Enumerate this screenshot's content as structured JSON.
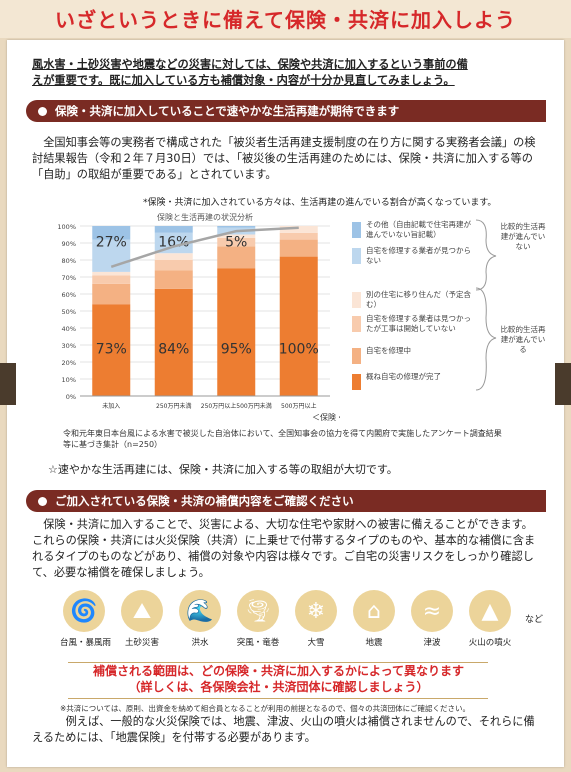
{
  "title": "いざというときに備えて保険・共済に加入しよう",
  "intro": {
    "part1": "風水害・土砂災害や地震などの災害に対しては、保険や共済に加入するという事前の備",
    "part2": "えが重要です。既に加入している方も補償対象・内容が十分か見直してみましょう。"
  },
  "section1": {
    "heading": "保険・共済に加入していることで速やかな生活再建が期待できます",
    "paragraph": "全国知事会等の実務者で構成された「被災者生活再建支援制度の在り方に関する実務者会議」の検討結果報告（令和２年７月30日）では、「被災後の生活再建のためには、保険・共済に加入する等の「自助」の取組が重要である」とされています。",
    "chart_note": "*保険・共済に加入されている方々は、生活再建の進んでいる割合が高くなっています。",
    "chart_title": "保険と生活再建の状況分析",
    "source": "令和元年東日本台風による水害で被災した自治体において、全国知事会の協力を得て内閣府で実施したアンケート調査結果等に基づき集計（n=250）",
    "conclusion": "☆速やかな生活再建には、保険・共済に加入する等の取組が大切です。"
  },
  "chart_data": {
    "type": "bar",
    "stacked": true,
    "title": "保険と生活再建の状況分析",
    "xlabel": "＜保険・共済の 受取額＞",
    "categories": [
      "未加入",
      "250万円未満",
      "250万円以上500万円未満",
      "500万円以上"
    ],
    "y_ticks": [
      "0%",
      "10%",
      "20%",
      "30%",
      "40%",
      "50%",
      "60%",
      "70%",
      "80%",
      "90%",
      "100%"
    ],
    "ylim": [
      0,
      100
    ],
    "series": [
      {
        "name": "概ね自宅の修理が完了",
        "color": "#ed7d31",
        "values": [
          54,
          63,
          75,
          82
        ]
      },
      {
        "name": "自宅を修理中",
        "color": "#f4b183",
        "values": [
          12,
          11,
          13,
          10
        ]
      },
      {
        "name": "自宅を修理する業者は見つかったが工事は開始していない",
        "color": "#f8cbad",
        "values": [
          5,
          6,
          5,
          4
        ]
      },
      {
        "name": "別の住宅に移り住んだ（予定含む）",
        "color": "#fbe5d6",
        "values": [
          2,
          4,
          2,
          4
        ]
      },
      {
        "name": "自宅を修理する業者が見つからない",
        "color": "#bdd7ee",
        "values": [
          19,
          12,
          4,
          0
        ]
      },
      {
        "name": "その他（自由記載で住宅再建が進んでいない旨記載）",
        "color": "#9dc3e6",
        "values": [
          8,
          4,
          1,
          0
        ]
      }
    ],
    "line": {
      "values": [
        76,
        88,
        97,
        99
      ],
      "color": "#a6a6a6"
    },
    "bar_labels": {
      "top": [
        "27%",
        "16%",
        "5%",
        ""
      ],
      "bottom": [
        "73%",
        "84%",
        "95%",
        "100%"
      ]
    },
    "brace_labels": [
      "比較的生活再建が進んでいない",
      "比較的生活再建が進んでいる"
    ],
    "legend_location": "right"
  },
  "section2": {
    "heading": "ご加入されている保険・共済の補償内容をご確認ください",
    "paragraph": "保険・共済に加入することで、災害による、大切な住宅や家財への被害に備えることができます。これらの保険・共済には火災保険（共済）に上乗せで付帯するタイプのものや、基本的な補償に含まれるタイプのものなどがあり、補償の対象や内容は様々です。ご自宅の災害リスクをしっかり確認して、必要な補償を確保しましょう。",
    "icons": [
      {
        "label": "台風・暴風雨",
        "icon": "typhoon-icon",
        "glyph": "🌀"
      },
      {
        "label": "土砂災害",
        "icon": "landslide-icon",
        "glyph": "⛰"
      },
      {
        "label": "洪水",
        "icon": "flood-icon",
        "glyph": "🌊"
      },
      {
        "label": "突風・竜巻",
        "icon": "tornado-icon",
        "glyph": "🌪"
      },
      {
        "label": "大雪",
        "icon": "snow-icon",
        "glyph": "❄"
      },
      {
        "label": "地震",
        "icon": "earthquake-icon",
        "glyph": "⌂"
      },
      {
        "label": "津波",
        "icon": "tsunami-icon",
        "glyph": "≈"
      },
      {
        "label": "火山の噴火",
        "icon": "volcano-icon",
        "glyph": "▲"
      }
    ],
    "etc": "など",
    "range_line1": "補償される範囲は、どの保険・共済に加入するかによって異なります",
    "range_line2": "（詳しくは、各保険会社・共済団体に確認しましょう）",
    "small_note": "※共済については、原則、出資金を納めて組合員となることが利用の前提となるので、個々の共済団体にご確認ください。",
    "example": "例えば、一般的な火災保険では、地震、津波、火山の噴火は補償されませんので、それらに備えるためには、「地震保険」を付帯する必要があります。"
  }
}
